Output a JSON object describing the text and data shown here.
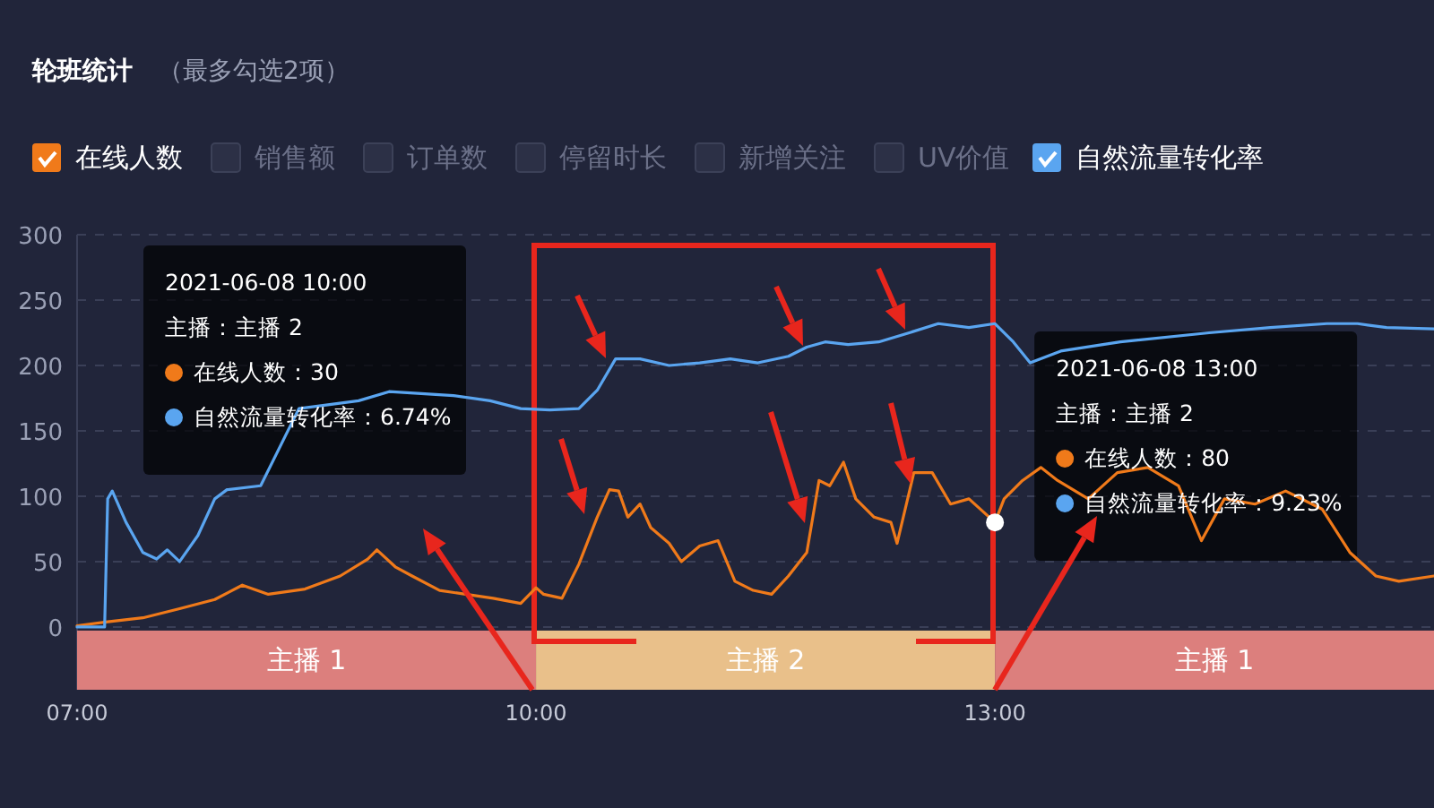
{
  "chart_data": {
    "type": "line",
    "title": "轮班统计",
    "subtitle": "（最多勾选2项）",
    "legend": "top left",
    "grid": "y",
    "xlim": [
      7,
      15.87
    ],
    "xticks": [
      {
        "value": 7,
        "label": "07:00"
      },
      {
        "value": 10,
        "label": "10:00"
      },
      {
        "value": 13,
        "label": "13:00"
      }
    ],
    "ylim": [
      -48,
      300
    ],
    "yticks": [
      0,
      50,
      100,
      150,
      200,
      250,
      300
    ],
    "series": [
      {
        "name": "在线人数",
        "color": "#f07a1a",
        "x": [
          7.0,
          7.2,
          7.43,
          7.67,
          7.9,
          8.08,
          8.25,
          8.49,
          8.72,
          8.9,
          8.96,
          9.08,
          9.19,
          9.37,
          9.54,
          9.72,
          9.9,
          10.0,
          10.05,
          10.17,
          10.28,
          10.4,
          10.48,
          10.54,
          10.6,
          10.68,
          10.75,
          10.87,
          10.95,
          11.07,
          11.19,
          11.3,
          11.42,
          11.54,
          11.65,
          11.77,
          11.85,
          11.92,
          12.01,
          12.09,
          12.21,
          12.32,
          12.36,
          12.47,
          12.59,
          12.71,
          12.83,
          13.0,
          13.06,
          13.18,
          13.3,
          13.41,
          13.61,
          13.8,
          14.0,
          14.2,
          14.35,
          14.5,
          14.7,
          14.9,
          15.14,
          15.32,
          15.49,
          15.64,
          15.87
        ],
        "values": [
          1,
          4,
          7,
          14,
          21,
          32,
          25,
          29,
          39,
          52,
          59,
          46,
          39,
          28,
          25,
          22,
          18,
          30,
          25,
          22,
          48,
          84,
          105,
          104,
          84,
          94,
          76,
          64,
          50,
          62,
          66,
          35,
          28,
          25,
          39,
          57,
          112,
          108,
          126,
          98,
          84,
          80,
          64,
          118,
          118,
          94,
          98,
          80,
          98,
          112,
          122,
          112,
          98,
          118,
          122,
          108,
          66,
          98,
          94,
          104,
          90,
          57,
          39,
          35,
          39
        ]
      },
      {
        "name": "销售额"
      },
      {
        "name": "订单数"
      },
      {
        "name": "停留时长"
      },
      {
        "name": "新增关注"
      },
      {
        "name": "UV价值"
      },
      {
        "name": "自然流量转化率",
        "color": "#5aa5f0",
        "x": [
          7.0,
          7.18,
          7.2,
          7.23,
          7.32,
          7.43,
          7.52,
          7.59,
          7.67,
          7.79,
          7.9,
          7.98,
          8.2,
          8.45,
          8.84,
          9.04,
          9.46,
          9.7,
          9.9,
          10.09,
          10.28,
          10.4,
          10.52,
          10.68,
          10.87,
          11.07,
          11.27,
          11.45,
          11.65,
          11.77,
          11.89,
          12.04,
          12.24,
          12.44,
          12.63,
          12.83,
          13.0,
          13.12,
          13.23,
          13.43,
          13.82,
          14.4,
          14.8,
          15.17,
          15.37,
          15.56,
          15.87
        ],
        "values": [
          0,
          0,
          98,
          104,
          80,
          57,
          52,
          59,
          50,
          70,
          98,
          105,
          108,
          167,
          173,
          180,
          177,
          173,
          167,
          166,
          167,
          181,
          205,
          205,
          200,
          202,
          205,
          202,
          207,
          214,
          218,
          216,
          218,
          225,
          232,
          229,
          232,
          218,
          202,
          211,
          218,
          225,
          229,
          232,
          232,
          229,
          228
        ]
      }
    ],
    "bands": [
      {
        "axis": "x",
        "from": 7,
        "to": 10,
        "label": "主播 1",
        "color": "#dc7f7d"
      },
      {
        "axis": "x",
        "from": 10,
        "to": 13,
        "label": "主播 2",
        "color": "#e9c08a"
      },
      {
        "axis": "x",
        "from": 13,
        "to": 15.87,
        "label": "主播 1",
        "color": "#dc7f7d"
      }
    ],
    "annotations": [
      "2021-06-08 10:00\n主播：主播 2\n在线人数：30\n自然流量转化率：6.74%",
      {
        "text": "2021-06-08 13:00\n主播：主播 2\n在线人数：80\n自然流量转化率：9.23%",
        "x": 13,
        "y": 80
      }
    ]
  }
}
